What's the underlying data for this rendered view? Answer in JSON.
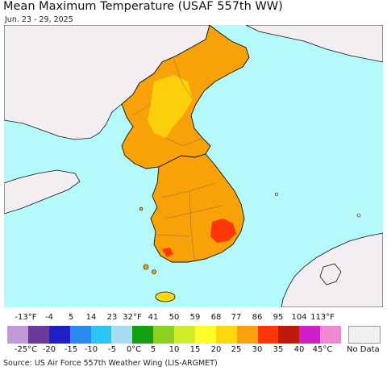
{
  "title": "Mean Maximum Temperature (USAF 557th WW)",
  "subtitle": "Jun. 23 - 29, 2025",
  "source": "Source: US Air Force 557th Weather Wing (LIS-ARGMET)",
  "legend": {
    "fahrenheit_labels": [
      "-13°F",
      "-4",
      "5",
      "14",
      "23",
      "32°F",
      "41",
      "50",
      "59",
      "68",
      "77",
      "86",
      "95",
      "104",
      "113°F"
    ],
    "celsius_labels": [
      "-25°C",
      "-20",
      "-15",
      "-10",
      "-5",
      "0°C",
      "5",
      "10",
      "15",
      "20",
      "25",
      "30",
      "35",
      "40",
      "45°C"
    ],
    "colors": [
      "#c09ad8",
      "#6b3a9c",
      "#1f1fc8",
      "#2a8af0",
      "#28c6f2",
      "#a8dcf2",
      "#12a012",
      "#8cd21e",
      "#d2ee2a",
      "#ffff28",
      "#fcd80a",
      "#f8a208",
      "#ff3608",
      "#c01a0a",
      "#d01ec8",
      "#f08ad0"
    ],
    "no_data_label": "No Data",
    "no_data_color": "#f2eef2"
  },
  "colors": {
    "ocean": "#b4fafa",
    "foreign_land": "#f2eef2",
    "warm_25_30": "#f8a208",
    "mild_20_25": "#fcd80a",
    "hot_30_35": "#ff3608"
  }
}
